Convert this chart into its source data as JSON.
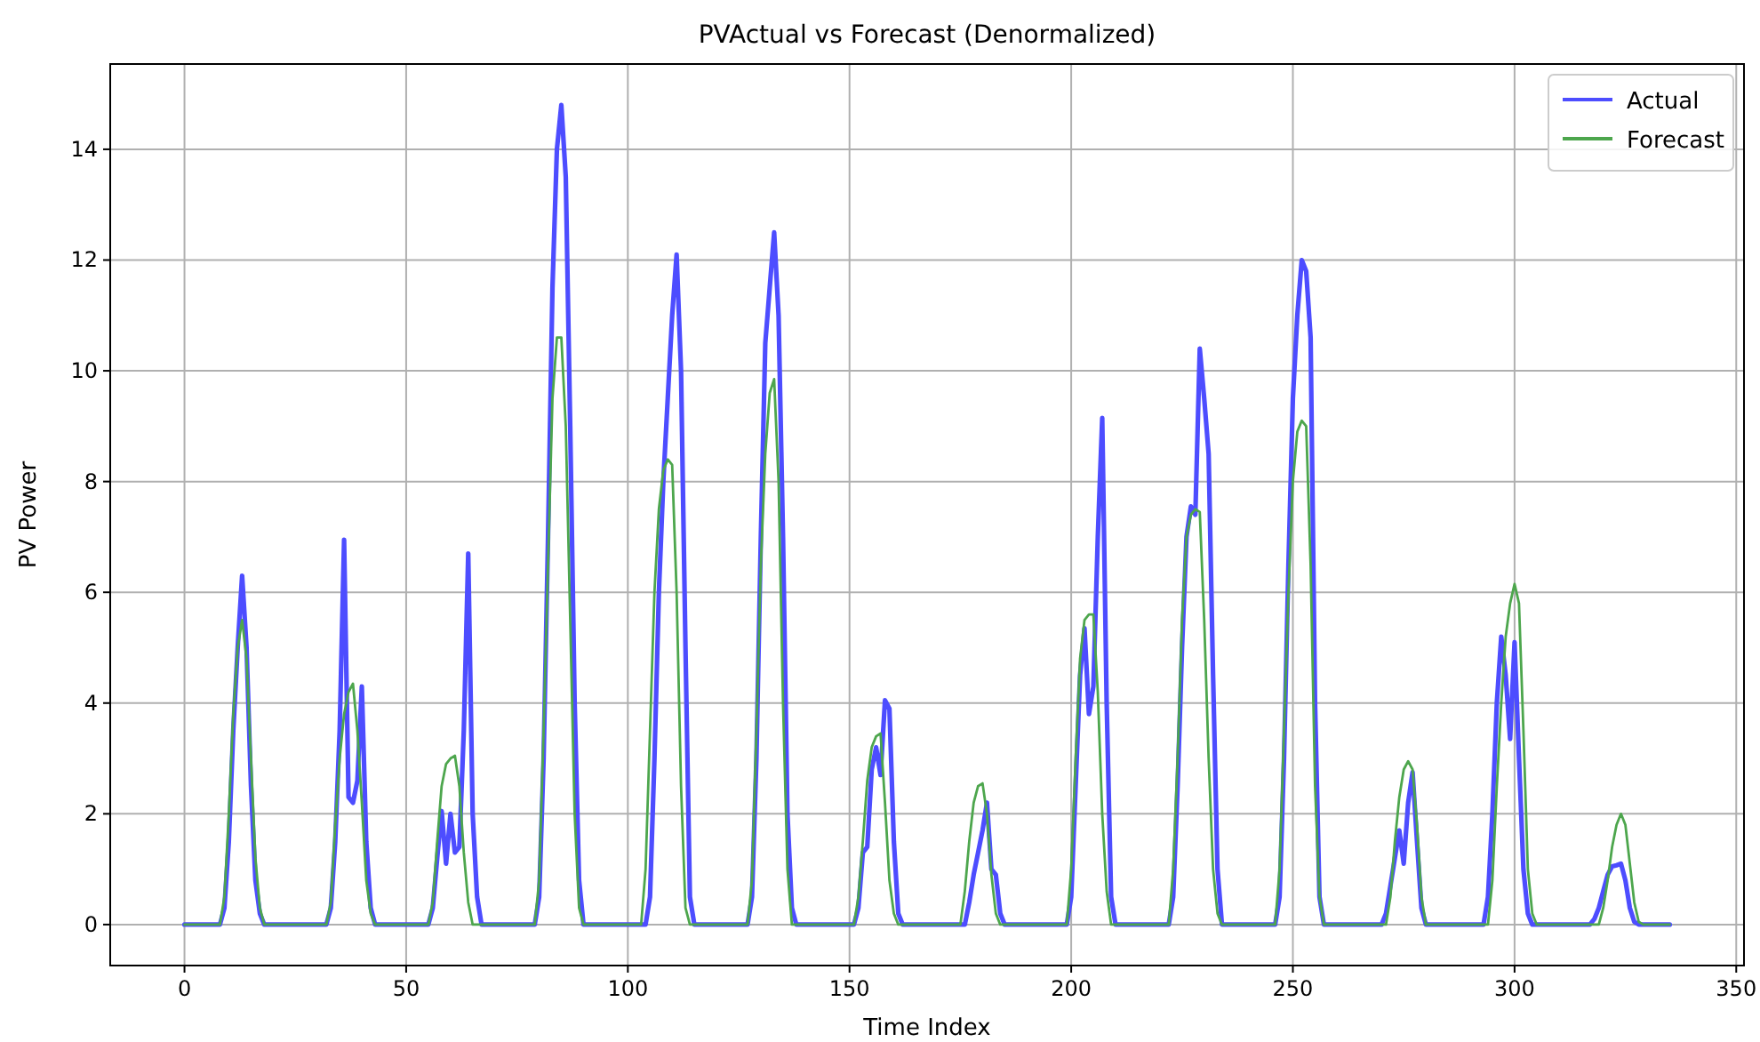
{
  "chart_data": {
    "type": "line",
    "title": "PVActual vs Forecast (Denormalized)",
    "xlabel": "Time Index",
    "ylabel": "PV Power",
    "xlim": [
      -16.75,
      351.75
    ],
    "xticks": [
      0,
      50,
      100,
      150,
      200,
      250,
      300,
      350
    ],
    "ylim": [
      -0.74,
      15.54
    ],
    "yticks": [
      0,
      2,
      4,
      6,
      8,
      10,
      12,
      14
    ],
    "grid": true,
    "legend": "top right",
    "series": [
      {
        "name": "Actual",
        "color": "#4d4dff",
        "x": [
          0,
          8,
          9,
          10,
          11,
          12,
          13,
          14,
          15,
          16,
          17,
          18,
          32,
          33,
          34,
          35,
          36,
          37,
          38,
          39,
          40,
          41,
          42,
          43,
          55,
          56,
          57,
          58,
          59,
          60,
          61,
          62,
          63,
          64,
          65,
          66,
          67,
          79,
          80,
          81,
          82,
          83,
          84,
          85,
          86,
          87,
          88,
          89,
          90,
          104,
          105,
          106,
          107,
          108,
          109,
          110,
          111,
          112,
          113,
          114,
          115,
          127,
          128,
          129,
          130,
          131,
          132,
          133,
          134,
          135,
          136,
          137,
          138,
          151,
          152,
          153,
          154,
          155,
          156,
          157,
          158,
          159,
          160,
          161,
          162,
          176,
          177,
          178,
          179,
          180,
          181,
          182,
          183,
          184,
          185,
          199,
          200,
          201,
          202,
          203,
          204,
          205,
          206,
          207,
          208,
          209,
          210,
          222,
          223,
          224,
          225,
          226,
          227,
          228,
          229,
          230,
          231,
          232,
          233,
          234,
          246,
          247,
          248,
          249,
          250,
          251,
          252,
          253,
          254,
          255,
          256,
          257,
          270,
          271,
          272,
          273,
          274,
          275,
          276,
          277,
          278,
          279,
          280,
          293,
          294,
          295,
          296,
          297,
          298,
          299,
          300,
          301,
          302,
          303,
          304,
          317,
          318,
          319,
          320,
          321,
          322,
          323,
          324,
          325,
          326,
          327,
          328,
          335
        ],
        "values": [
          0,
          0,
          0.3,
          1.5,
          3.5,
          5,
          6.3,
          5,
          2.5,
          0.8,
          0.2,
          0,
          0,
          0.3,
          1.5,
          3.5,
          6.95,
          2.3,
          2.2,
          2.6,
          4.3,
          1.5,
          0.3,
          0,
          0,
          0.3,
          1.2,
          2.05,
          1.1,
          2.0,
          1.3,
          1.4,
          3.5,
          6.7,
          2,
          0.5,
          0,
          0,
          0.5,
          3,
          7,
          11.5,
          14,
          14.8,
          13.5,
          9,
          4,
          0.8,
          0,
          0,
          0.5,
          3,
          6,
          8,
          9.5,
          11,
          12.1,
          10,
          5,
          0.5,
          0,
          0,
          0.5,
          3,
          7,
          10.5,
          11.5,
          12.5,
          11,
          7,
          2,
          0.3,
          0,
          0,
          0.3,
          1.3,
          1.4,
          2.8,
          3.2,
          2.7,
          4.05,
          3.9,
          1.5,
          0.2,
          0,
          0,
          0.4,
          0.9,
          1.3,
          1.7,
          2.2,
          1,
          0.9,
          0.2,
          0,
          0,
          0.5,
          2.5,
          4.5,
          5.35,
          3.8,
          4.3,
          7,
          9.15,
          4,
          0.5,
          0,
          0,
          0.5,
          2.5,
          5,
          7,
          7.55,
          7.4,
          10.4,
          9.5,
          8.5,
          4.5,
          1,
          0,
          0,
          0.5,
          3,
          6.5,
          9.5,
          11,
          12,
          11.8,
          10.6,
          4,
          0.5,
          0,
          0,
          0.2,
          0.7,
          1.2,
          1.7,
          1.1,
          2.2,
          2.75,
          1.5,
          0.3,
          0,
          0,
          0.5,
          2,
          4,
          5.2,
          4.5,
          3.35,
          5.1,
          3,
          1,
          0.2,
          0,
          0,
          0.1,
          0.3,
          0.6,
          0.9,
          1.05,
          1.07,
          1.1,
          0.8,
          0.3,
          0.05,
          0,
          0
        ]
      },
      {
        "name": "Forecast",
        "color": "#4da64d",
        "x": [
          0,
          8,
          9,
          10,
          11,
          12,
          13,
          14,
          15,
          16,
          17,
          18,
          32,
          33,
          34,
          35,
          36,
          37,
          38,
          39,
          40,
          41,
          42,
          43,
          55,
          56,
          57,
          58,
          59,
          60,
          61,
          62,
          63,
          64,
          65,
          79,
          80,
          81,
          82,
          83,
          84,
          85,
          86,
          87,
          88,
          89,
          90,
          103,
          104,
          105,
          106,
          107,
          108,
          109,
          110,
          111,
          112,
          113,
          114,
          127,
          128,
          129,
          130,
          131,
          132,
          133,
          134,
          135,
          136,
          137,
          151,
          152,
          153,
          154,
          155,
          156,
          157,
          158,
          159,
          160,
          161,
          175,
          176,
          177,
          178,
          179,
          180,
          181,
          182,
          183,
          184,
          199,
          200,
          201,
          202,
          203,
          204,
          205,
          206,
          207,
          208,
          209,
          222,
          223,
          224,
          225,
          226,
          227,
          228,
          229,
          230,
          231,
          232,
          233,
          234,
          246,
          247,
          248,
          249,
          250,
          251,
          252,
          253,
          254,
          255,
          256,
          257,
          271,
          272,
          273,
          274,
          275,
          276,
          277,
          278,
          279,
          280,
          294,
          295,
          296,
          297,
          298,
          299,
          300,
          301,
          302,
          303,
          304,
          305,
          319,
          320,
          321,
          322,
          323,
          324,
          325,
          326,
          327,
          328,
          329,
          335
        ],
        "values": [
          0,
          0,
          0.5,
          2,
          3.8,
          5,
          5.5,
          4.8,
          3,
          1.2,
          0.3,
          0,
          0,
          0.4,
          1.8,
          3,
          3.8,
          4.2,
          4.35,
          3.5,
          2.2,
          0.8,
          0.2,
          0,
          0,
          0.4,
          1.5,
          2.5,
          2.9,
          3,
          3.05,
          2.5,
          1.3,
          0.4,
          0,
          0,
          0.8,
          3.5,
          6.5,
          9.5,
          10.6,
          10.6,
          9,
          5.5,
          2,
          0.3,
          0,
          0,
          1,
          3.5,
          6,
          7.5,
          8.2,
          8.4,
          8.3,
          6,
          2.5,
          0.3,
          0,
          0,
          0.8,
          3.5,
          6.5,
          8.5,
          9.6,
          9.85,
          8,
          4,
          1,
          0,
          0,
          0.5,
          1.5,
          2.6,
          3.2,
          3.4,
          3.45,
          2.2,
          0.8,
          0.2,
          0,
          0,
          0.6,
          1.5,
          2.2,
          2.5,
          2.55,
          2,
          0.9,
          0.2,
          0,
          0,
          1,
          3,
          4.8,
          5.5,
          5.6,
          5.6,
          4.2,
          2,
          0.6,
          0,
          0,
          1,
          3,
          5.5,
          7,
          7.4,
          7.5,
          7.45,
          5.5,
          3,
          1,
          0.2,
          0,
          0,
          1,
          3.5,
          6,
          8,
          8.9,
          9.1,
          9,
          6.5,
          2.5,
          0.5,
          0,
          0,
          0.5,
          1.5,
          2.3,
          2.8,
          2.95,
          2.8,
          1.8,
          0.5,
          0,
          0,
          0.8,
          2.5,
          4,
          5.2,
          5.8,
          6.15,
          5.8,
          3.5,
          1,
          0.2,
          0,
          0,
          0.3,
          0.8,
          1.4,
          1.8,
          2,
          1.8,
          1.1,
          0.4,
          0.05,
          0,
          0
        ]
      }
    ]
  }
}
